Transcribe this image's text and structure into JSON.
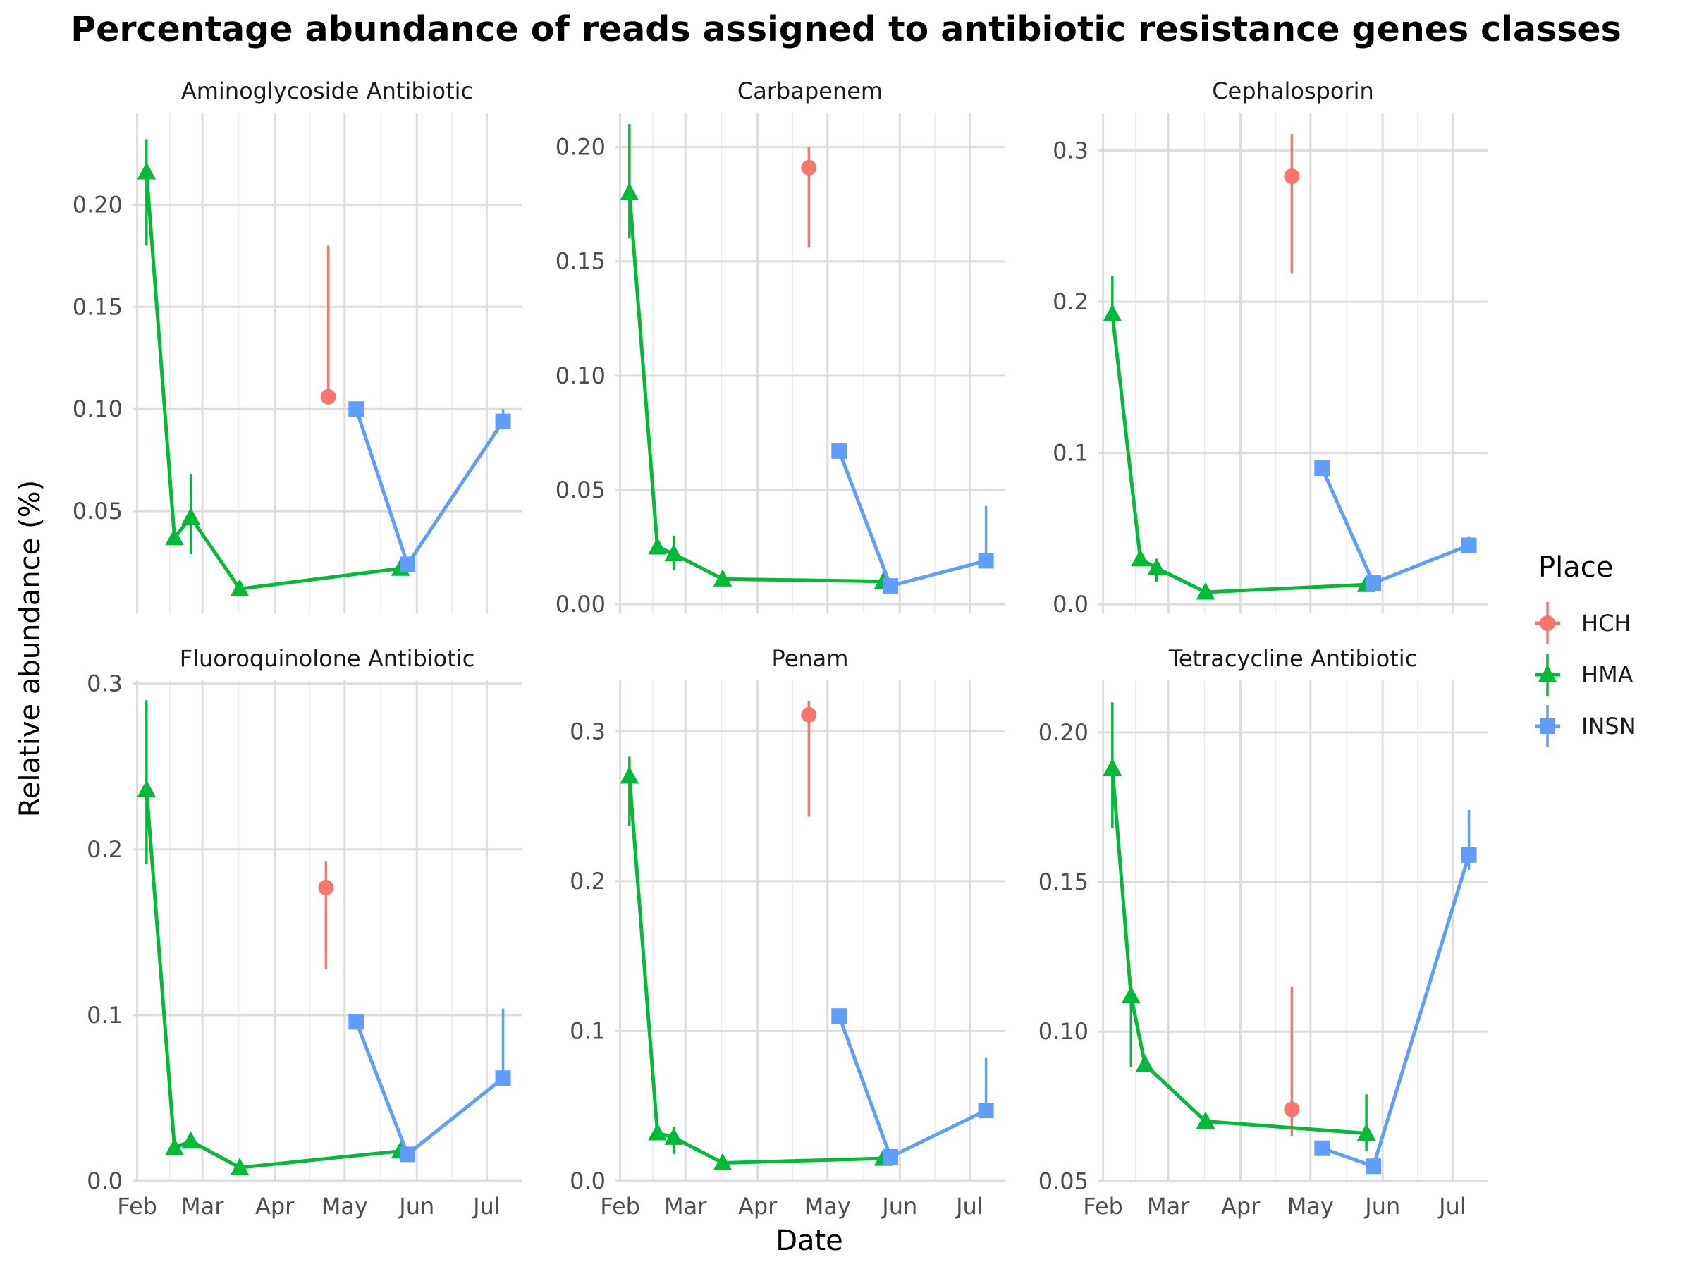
{
  "chart_data": {
    "type": "line",
    "title": "Percentage abundance of reads assigned to antibiotic resistance genes classes",
    "xlabel": "Date",
    "ylabel": "Relative abundance (%)",
    "x_ticks": [
      "Feb",
      "Mar",
      "Apr",
      "May",
      "Jun",
      "Jul"
    ],
    "x_tick_dates": [
      "2023-02-01",
      "2023-03-01",
      "2023-04-01",
      "2023-05-01",
      "2023-06-01",
      "2023-07-01"
    ],
    "xlim": [
      "2023-01-30",
      "2023-07-16"
    ],
    "grid": true,
    "legend": {
      "title": "Place",
      "position": "right",
      "entries": [
        {
          "name": "HCH",
          "color": "#F8766D",
          "marker": "circle"
        },
        {
          "name": "HMA",
          "color": "#00BA38",
          "marker": "triangle"
        },
        {
          "name": "INSN",
          "color": "#619CFF",
          "marker": "square"
        }
      ]
    },
    "panels": [
      {
        "title": "Aminoglycoside Antibiotic",
        "ylim": [
          0.0,
          0.245
        ],
        "y_ticks": [
          "0.05",
          "0.10",
          "0.15",
          "0.20"
        ],
        "y_tick_values": [
          0.05,
          0.1,
          0.15,
          0.2
        ],
        "series": [
          {
            "name": "HCH",
            "points": [
              {
                "x": "2023-04-24",
                "y": 0.106,
                "ymin": null,
                "ymax": 0.18
              }
            ]
          },
          {
            "name": "HMA",
            "points": [
              {
                "x": "2023-02-05",
                "y": 0.216,
                "ymin": 0.18,
                "ymax": 0.232
              },
              {
                "x": "2023-02-17",
                "y": 0.037,
                "ymin": null,
                "ymax": null
              },
              {
                "x": "2023-02-24",
                "y": 0.047,
                "ymin": 0.029,
                "ymax": 0.068
              },
              {
                "x": "2023-03-17",
                "y": 0.012,
                "ymin": null,
                "ymax": null
              },
              {
                "x": "2023-05-25",
                "y": 0.022,
                "ymin": null,
                "ymax": null
              }
            ]
          },
          {
            "name": "INSN",
            "points": [
              {
                "x": "2023-05-06",
                "y": 0.1,
                "ymin": null,
                "ymax": null
              },
              {
                "x": "2023-05-28",
                "y": 0.024,
                "ymin": null,
                "ymax": null
              },
              {
                "x": "2023-07-08",
                "y": 0.094,
                "ymin": 0.09,
                "ymax": 0.1
              }
            ]
          }
        ]
      },
      {
        "title": "Carbapenem",
        "ylim": [
          -0.004,
          0.215
        ],
        "y_ticks": [
          "0.00",
          "0.05",
          "0.10",
          "0.15",
          "0.20"
        ],
        "y_tick_values": [
          0.0,
          0.05,
          0.1,
          0.15,
          0.2
        ],
        "series": [
          {
            "name": "HCH",
            "points": [
              {
                "x": "2023-04-23",
                "y": 0.191,
                "ymin": 0.156,
                "ymax": 0.2
              }
            ]
          },
          {
            "name": "HMA",
            "points": [
              {
                "x": "2023-02-05",
                "y": 0.18,
                "ymin": 0.16,
                "ymax": 0.21
              },
              {
                "x": "2023-02-17",
                "y": 0.025,
                "ymin": null,
                "ymax": null
              },
              {
                "x": "2023-02-24",
                "y": 0.022,
                "ymin": 0.015,
                "ymax": 0.03
              },
              {
                "x": "2023-03-17",
                "y": 0.011,
                "ymin": null,
                "ymax": null
              },
              {
                "x": "2023-05-25",
                "y": 0.01,
                "ymin": null,
                "ymax": null
              }
            ]
          },
          {
            "name": "INSN",
            "points": [
              {
                "x": "2023-05-06",
                "y": 0.067,
                "ymin": null,
                "ymax": null
              },
              {
                "x": "2023-05-28",
                "y": 0.008,
                "ymin": null,
                "ymax": null
              },
              {
                "x": "2023-07-08",
                "y": 0.019,
                "ymin": null,
                "ymax": 0.043
              }
            ]
          }
        ]
      },
      {
        "title": "Cephalosporin",
        "ylim": [
          -0.006,
          0.325
        ],
        "y_ticks": [
          "0.0",
          "0.1",
          "0.2",
          "0.3"
        ],
        "y_tick_values": [
          0.0,
          0.1,
          0.2,
          0.3
        ],
        "series": [
          {
            "name": "HCH",
            "points": [
              {
                "x": "2023-04-23",
                "y": 0.283,
                "ymin": 0.219,
                "ymax": 0.311
              }
            ]
          },
          {
            "name": "HMA",
            "points": [
              {
                "x": "2023-02-05",
                "y": 0.192,
                "ymin": null,
                "ymax": 0.217
              },
              {
                "x": "2023-02-17",
                "y": 0.03,
                "ymin": null,
                "ymax": null
              },
              {
                "x": "2023-02-24",
                "y": 0.024,
                "ymin": 0.015,
                "ymax": 0.03
              },
              {
                "x": "2023-03-17",
                "y": 0.008,
                "ymin": null,
                "ymax": null
              },
              {
                "x": "2023-05-25",
                "y": 0.013,
                "ymin": null,
                "ymax": null
              }
            ]
          },
          {
            "name": "INSN",
            "points": [
              {
                "x": "2023-05-06",
                "y": 0.09,
                "ymin": null,
                "ymax": null
              },
              {
                "x": "2023-05-28",
                "y": 0.014,
                "ymin": null,
                "ymax": null
              },
              {
                "x": "2023-07-08",
                "y": 0.039,
                "ymin": 0.035,
                "ymax": 0.045
              }
            ]
          }
        ]
      },
      {
        "title": "Fluoroquinolone Antibiotic",
        "ylim": [
          0.0,
          0.302
        ],
        "y_ticks": [
          "0.0",
          "0.1",
          "0.2",
          "0.3"
        ],
        "y_tick_values": [
          0.0,
          0.1,
          0.2,
          0.3
        ],
        "series": [
          {
            "name": "HCH",
            "points": [
              {
                "x": "2023-04-23",
                "y": 0.177,
                "ymin": 0.128,
                "ymax": 0.193
              }
            ]
          },
          {
            "name": "HMA",
            "points": [
              {
                "x": "2023-02-05",
                "y": 0.236,
                "ymin": 0.191,
                "ymax": 0.29
              },
              {
                "x": "2023-02-17",
                "y": 0.02,
                "ymin": null,
                "ymax": null
              },
              {
                "x": "2023-02-24",
                "y": 0.024,
                "ymin": null,
                "ymax": null
              },
              {
                "x": "2023-03-17",
                "y": 0.008,
                "ymin": null,
                "ymax": null
              },
              {
                "x": "2023-05-25",
                "y": 0.018,
                "ymin": null,
                "ymax": null
              }
            ]
          },
          {
            "name": "INSN",
            "points": [
              {
                "x": "2023-05-06",
                "y": 0.096,
                "ymin": null,
                "ymax": null
              },
              {
                "x": "2023-05-28",
                "y": 0.016,
                "ymin": null,
                "ymax": null
              },
              {
                "x": "2023-07-08",
                "y": 0.062,
                "ymin": null,
                "ymax": 0.104
              }
            ]
          }
        ]
      },
      {
        "title": "Penam",
        "ylim": [
          0.0,
          0.334
        ],
        "y_ticks": [
          "0.0",
          "0.1",
          "0.2",
          "0.3"
        ],
        "y_tick_values": [
          0.0,
          0.1,
          0.2,
          0.3
        ],
        "series": [
          {
            "name": "HCH",
            "points": [
              {
                "x": "2023-04-23",
                "y": 0.311,
                "ymin": 0.243,
                "ymax": 0.32
              }
            ]
          },
          {
            "name": "HMA",
            "points": [
              {
                "x": "2023-02-05",
                "y": 0.27,
                "ymin": 0.237,
                "ymax": 0.283
              },
              {
                "x": "2023-02-17",
                "y": 0.032,
                "ymin": null,
                "ymax": null
              },
              {
                "x": "2023-02-24",
                "y": 0.029,
                "ymin": 0.018,
                "ymax": 0.036
              },
              {
                "x": "2023-03-17",
                "y": 0.012,
                "ymin": null,
                "ymax": null
              },
              {
                "x": "2023-05-25",
                "y": 0.015,
                "ymin": null,
                "ymax": null
              }
            ]
          },
          {
            "name": "INSN",
            "points": [
              {
                "x": "2023-05-06",
                "y": 0.11,
                "ymin": null,
                "ymax": null
              },
              {
                "x": "2023-05-28",
                "y": 0.016,
                "ymin": null,
                "ymax": null
              },
              {
                "x": "2023-07-08",
                "y": 0.047,
                "ymin": null,
                "ymax": 0.082
              }
            ]
          }
        ]
      },
      {
        "title": "Tetracycline Antibiotic",
        "ylim": [
          0.0501,
          0.2174
        ],
        "y_ticks": [
          "0.05",
          "0.10",
          "0.15",
          "0.20"
        ],
        "y_tick_values": [
          0.05,
          0.1,
          0.15,
          0.2
        ],
        "series": [
          {
            "name": "HCH",
            "points": [
              {
                "x": "2023-04-23",
                "y": 0.074,
                "ymin": 0.065,
                "ymax": 0.115
              }
            ]
          },
          {
            "name": "HMA",
            "points": [
              {
                "x": "2023-02-05",
                "y": 0.188,
                "ymin": 0.168,
                "ymax": 0.21
              },
              {
                "x": "2023-02-13",
                "y": 0.112,
                "ymin": 0.088,
                "ymax": null
              },
              {
                "x": "2023-02-19",
                "y": 0.089,
                "ymin": null,
                "ymax": null
              },
              {
                "x": "2023-03-17",
                "y": 0.07,
                "ymin": null,
                "ymax": null
              },
              {
                "x": "2023-05-25",
                "y": 0.066,
                "ymin": 0.06,
                "ymax": 0.079
              }
            ]
          },
          {
            "name": "INSN",
            "points": [
              {
                "x": "2023-05-06",
                "y": 0.061,
                "ymin": null,
                "ymax": null
              },
              {
                "x": "2023-05-28",
                "y": 0.055,
                "ymin": null,
                "ymax": null
              },
              {
                "x": "2023-07-08",
                "y": 0.159,
                "ymin": 0.154,
                "ymax": 0.174
              }
            ]
          }
        ]
      }
    ]
  }
}
